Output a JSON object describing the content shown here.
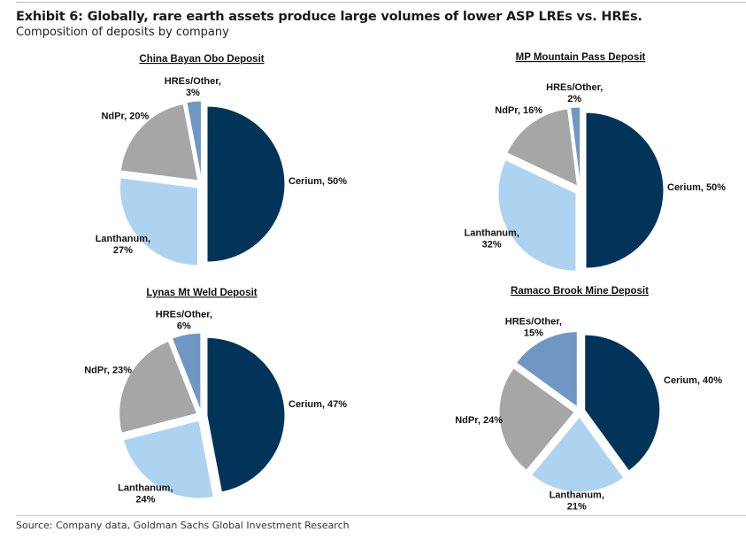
{
  "header": {
    "title": "Exhibit 6: Globally, rare earth assets produce large volumes of lower ASP LREs vs. HREs.",
    "subtitle": "Composition of deposits by company"
  },
  "footer": {
    "source": "Source: Company data, Goldman Sachs Global Investment Research"
  },
  "colors": {
    "Cerium": "#023359",
    "Lanthanum": "#aed3f0",
    "NdPr": "#a6a6a6",
    "HREs/Other": "#7097c4"
  },
  "chart_data": [
    {
      "type": "pie",
      "title": "China Bayan Obo Deposit",
      "categories": [
        "Cerium",
        "Lanthanum",
        "NdPr",
        "HREs/Other"
      ],
      "values": [
        50,
        27,
        20,
        3
      ],
      "labels": [
        [
          "Cerium, 50%"
        ],
        [
          "Lanthanum,",
          "27%"
        ],
        [
          "NdPr, 20%"
        ],
        [
          "HREs/Other,",
          "3%"
        ]
      ],
      "unit": "%"
    },
    {
      "type": "pie",
      "title": "MP Mountain Pass Deposit",
      "categories": [
        "Cerium",
        "Lanthanum",
        "NdPr",
        "HREs/Other"
      ],
      "values": [
        50,
        32,
        16,
        2
      ],
      "labels": [
        [
          "Cerium, 50%"
        ],
        [
          "Lanthanum,",
          "32%"
        ],
        [
          "NdPr, 16%"
        ],
        [
          "HREs/Other,",
          "2%"
        ]
      ],
      "unit": "%"
    },
    {
      "type": "pie",
      "title": "Lynas Mt Weld Deposit",
      "categories": [
        "Cerium",
        "Lanthanum",
        "NdPr",
        "HREs/Other"
      ],
      "values": [
        47,
        24,
        23,
        6
      ],
      "labels": [
        [
          "Cerium, 47%"
        ],
        [
          "Lanthanum,",
          "24%"
        ],
        [
          "NdPr, 23%"
        ],
        [
          "HREs/Other,",
          "6%"
        ]
      ],
      "unit": "%"
    },
    {
      "type": "pie",
      "title": "Ramaco Brook Mine Deposit",
      "categories": [
        "Cerium",
        "Lanthanum",
        "NdPr",
        "HREs/Other"
      ],
      "values": [
        40,
        21,
        24,
        15
      ],
      "labels": [
        [
          "Cerium, 40%"
        ],
        [
          "Lanthanum,",
          "21%"
        ],
        [
          "NdPr, 24%"
        ],
        [
          "HREs/Other,",
          "15%"
        ]
      ],
      "unit": "%"
    }
  ]
}
